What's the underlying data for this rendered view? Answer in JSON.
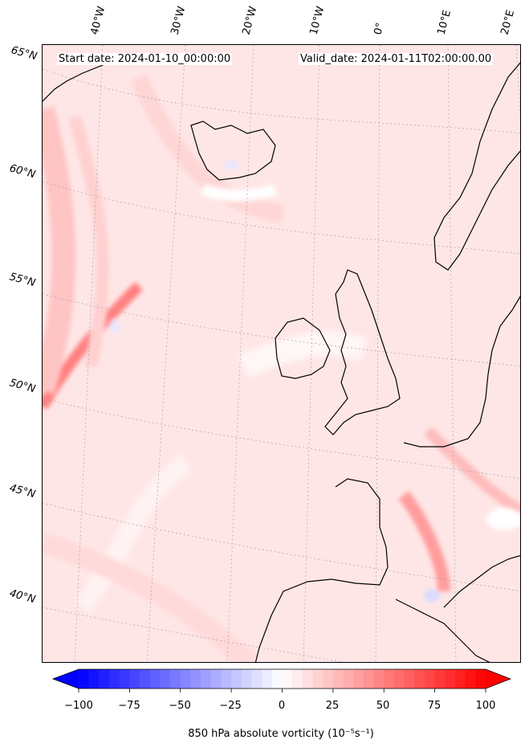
{
  "header": {
    "start_date": "Start date: 2024-01-10_00:00:00",
    "valid_date": "Valid_date: 2024-01-11T02:00:00.00"
  },
  "longitude_labels": [
    "40°W",
    "30°W",
    "20°W",
    "10°W",
    "0°",
    "10°E",
    "20°E"
  ],
  "latitude_labels": [
    "65°N",
    "60°N",
    "55°N",
    "50°N",
    "45°N",
    "40°N"
  ],
  "colorbar": {
    "title": "850 hPa absolute vorticity (10⁻⁵s⁻¹)",
    "ticks": [
      "−100",
      "−75",
      "−50",
      "−25",
      "0",
      "25",
      "50",
      "75",
      "100"
    ],
    "range": [
      -100,
      100
    ],
    "colormap": "bwr",
    "extend": "both",
    "colors": {
      "negative": "#0000ff",
      "zero": "#ffffff",
      "positive": "#ff0000"
    }
  }
}
